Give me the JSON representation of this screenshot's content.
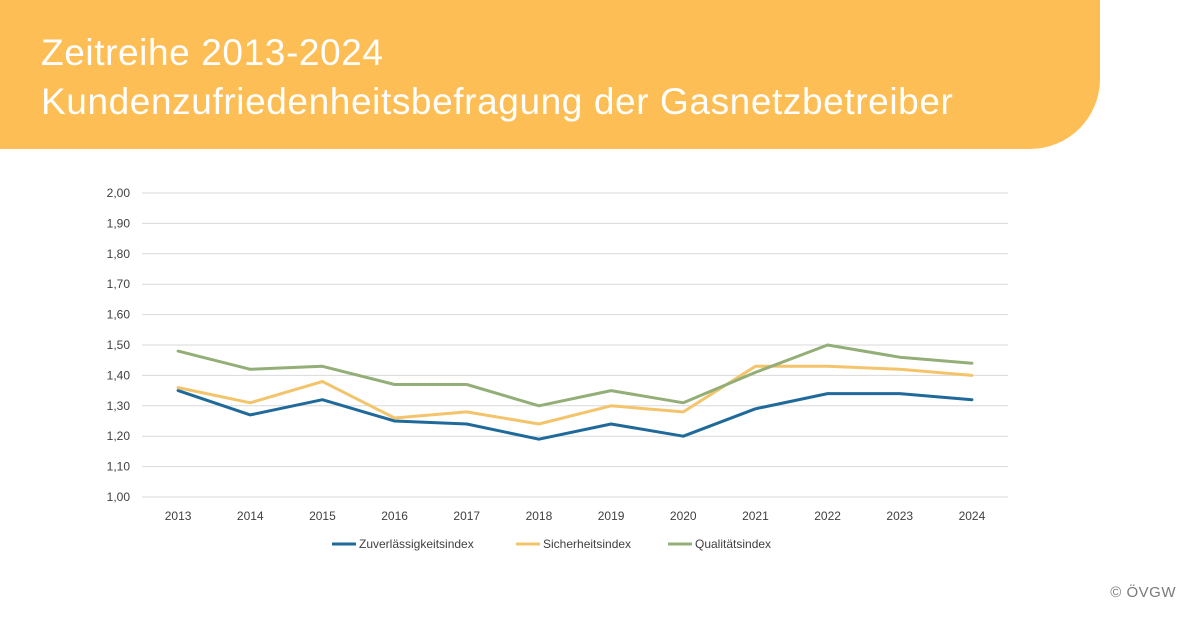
{
  "header": {
    "title_line1": "Zeitreihe 2013-2024",
    "title_line2": "Kundenzufriedenheitsbefragung der Gasnetzbetreiber",
    "banner_color": "#FDBE55",
    "text_color": "#FFFFFF"
  },
  "chart_data": {
    "type": "line",
    "title": "",
    "xlabel": "",
    "ylabel": "",
    "categories": [
      "2013",
      "2014",
      "2015",
      "2016",
      "2017",
      "2018",
      "2019",
      "2020",
      "2021",
      "2022",
      "2023",
      "2024"
    ],
    "ylim": [
      1.0,
      2.0
    ],
    "yticks": [
      "2,00",
      "1,90",
      "1,80",
      "1,70",
      "1,60",
      "1,50",
      "1,40",
      "1,30",
      "1,20",
      "1,10",
      "1,00"
    ],
    "grid": true,
    "legend_position": "bottom",
    "series": [
      {
        "name": "Zuverlässigkeitsindex",
        "color": "#1F6A9A",
        "values": [
          1.35,
          1.27,
          1.32,
          1.25,
          1.24,
          1.19,
          1.24,
          1.2,
          1.29,
          1.34,
          1.34,
          1.32
        ]
      },
      {
        "name": "Sicherheitsindex",
        "color": "#F3C46B",
        "values": [
          1.36,
          1.31,
          1.38,
          1.26,
          1.28,
          1.24,
          1.3,
          1.28,
          1.43,
          1.43,
          1.42,
          1.4
        ]
      },
      {
        "name": "Qualitätsindex",
        "color": "#93AF77",
        "values": [
          1.48,
          1.42,
          1.43,
          1.37,
          1.37,
          1.3,
          1.35,
          1.31,
          1.41,
          1.5,
          1.46,
          1.44
        ]
      }
    ]
  },
  "footer": {
    "copyright": "© ÖVGW"
  }
}
